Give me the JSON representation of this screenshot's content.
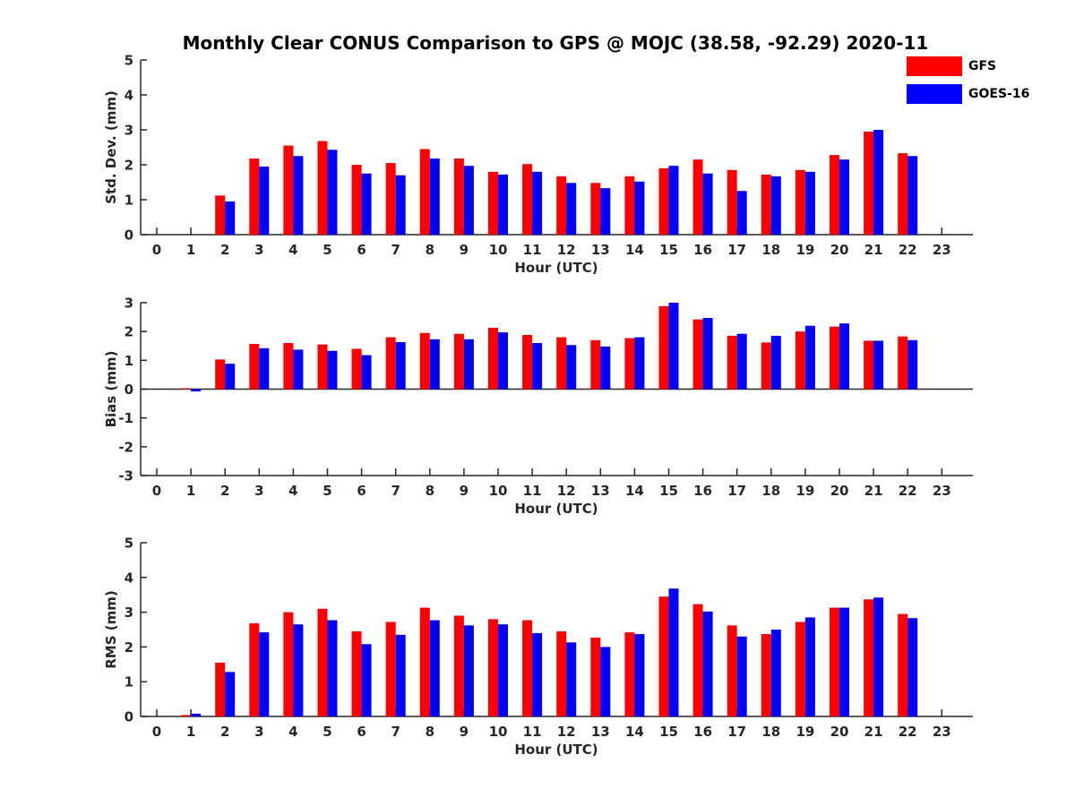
{
  "title": "Monthly Clear CONUS Comparison to GPS @ MOJC (38.58, -92.29) 2020-11",
  "legend": [
    {
      "name": "GFS",
      "color": "#ff0000"
    },
    {
      "name": "GOES-16",
      "color": "#0000ff"
    }
  ],
  "chart_data": [
    {
      "type": "bar",
      "xlabel": "Hour (UTC)",
      "ylabel": "Std. Dev. (mm)",
      "ylim": [
        0,
        5
      ],
      "yticks": [
        0,
        1,
        2,
        3,
        4,
        5
      ],
      "categories": [
        "0",
        "1",
        "2",
        "3",
        "4",
        "5",
        "6",
        "7",
        "8",
        "9",
        "10",
        "11",
        "12",
        "13",
        "14",
        "15",
        "16",
        "17",
        "18",
        "19",
        "20",
        "21",
        "22",
        "23"
      ],
      "series": [
        {
          "name": "GFS",
          "color": "#ff0000",
          "values": [
            null,
            null,
            1.12,
            2.18,
            2.55,
            2.68,
            2.0,
            2.05,
            2.45,
            2.18,
            1.8,
            2.02,
            1.67,
            1.48,
            1.67,
            1.9,
            2.15,
            1.85,
            1.72,
            1.85,
            2.28,
            2.95,
            2.33,
            null
          ]
        },
        {
          "name": "GOES-16",
          "color": "#0000ff",
          "values": [
            null,
            null,
            0.95,
            1.95,
            2.25,
            2.43,
            1.75,
            1.7,
            2.18,
            1.97,
            1.72,
            1.8,
            1.48,
            1.33,
            1.52,
            1.97,
            1.75,
            1.25,
            1.67,
            1.8,
            2.15,
            3.0,
            2.25,
            null
          ]
        }
      ]
    },
    {
      "type": "bar",
      "xlabel": "Hour (UTC)",
      "ylabel": "Bias (mm)",
      "ylim": [
        -3,
        3
      ],
      "yticks": [
        -3,
        -2,
        -1,
        0,
        1,
        2,
        3
      ],
      "categories": [
        "0",
        "1",
        "2",
        "3",
        "4",
        "5",
        "6",
        "7",
        "8",
        "9",
        "10",
        "11",
        "12",
        "13",
        "14",
        "15",
        "16",
        "17",
        "18",
        "19",
        "20",
        "21",
        "22",
        "23"
      ],
      "series": [
        {
          "name": "GFS",
          "color": "#ff0000",
          "values": [
            null,
            0.03,
            1.03,
            1.57,
            1.6,
            1.55,
            1.4,
            1.8,
            1.95,
            1.92,
            2.13,
            1.88,
            1.8,
            1.7,
            1.77,
            2.88,
            2.42,
            1.85,
            1.62,
            2.0,
            2.17,
            1.68,
            1.83,
            null
          ]
        },
        {
          "name": "GOES-16",
          "color": "#0000ff",
          "values": [
            null,
            -0.08,
            0.88,
            1.42,
            1.37,
            1.33,
            1.18,
            1.63,
            1.73,
            1.73,
            1.97,
            1.6,
            1.53,
            1.48,
            1.8,
            3.0,
            2.47,
            1.92,
            1.85,
            2.2,
            2.28,
            1.68,
            1.7,
            null
          ]
        }
      ]
    },
    {
      "type": "bar",
      "xlabel": "Hour (UTC)",
      "ylabel": "RMS (mm)",
      "ylim": [
        0,
        5
      ],
      "yticks": [
        0,
        1,
        2,
        3,
        4,
        5
      ],
      "categories": [
        "0",
        "1",
        "2",
        "3",
        "4",
        "5",
        "6",
        "7",
        "8",
        "9",
        "10",
        "11",
        "12",
        "13",
        "14",
        "15",
        "16",
        "17",
        "18",
        "19",
        "20",
        "21",
        "22",
        "23"
      ],
      "series": [
        {
          "name": "GFS",
          "color": "#ff0000",
          "values": [
            null,
            0.04,
            1.55,
            2.68,
            3.0,
            3.1,
            2.45,
            2.72,
            3.13,
            2.9,
            2.8,
            2.77,
            2.45,
            2.27,
            2.42,
            3.45,
            3.23,
            2.62,
            2.37,
            2.72,
            3.13,
            3.37,
            2.95,
            null
          ]
        },
        {
          "name": "GOES-16",
          "color": "#0000ff",
          "values": [
            null,
            0.08,
            1.28,
            2.42,
            2.65,
            2.77,
            2.08,
            2.35,
            2.77,
            2.62,
            2.65,
            2.4,
            2.13,
            2.0,
            2.37,
            3.68,
            3.02,
            2.3,
            2.5,
            2.85,
            3.13,
            3.42,
            2.83,
            null
          ]
        }
      ]
    }
  ]
}
